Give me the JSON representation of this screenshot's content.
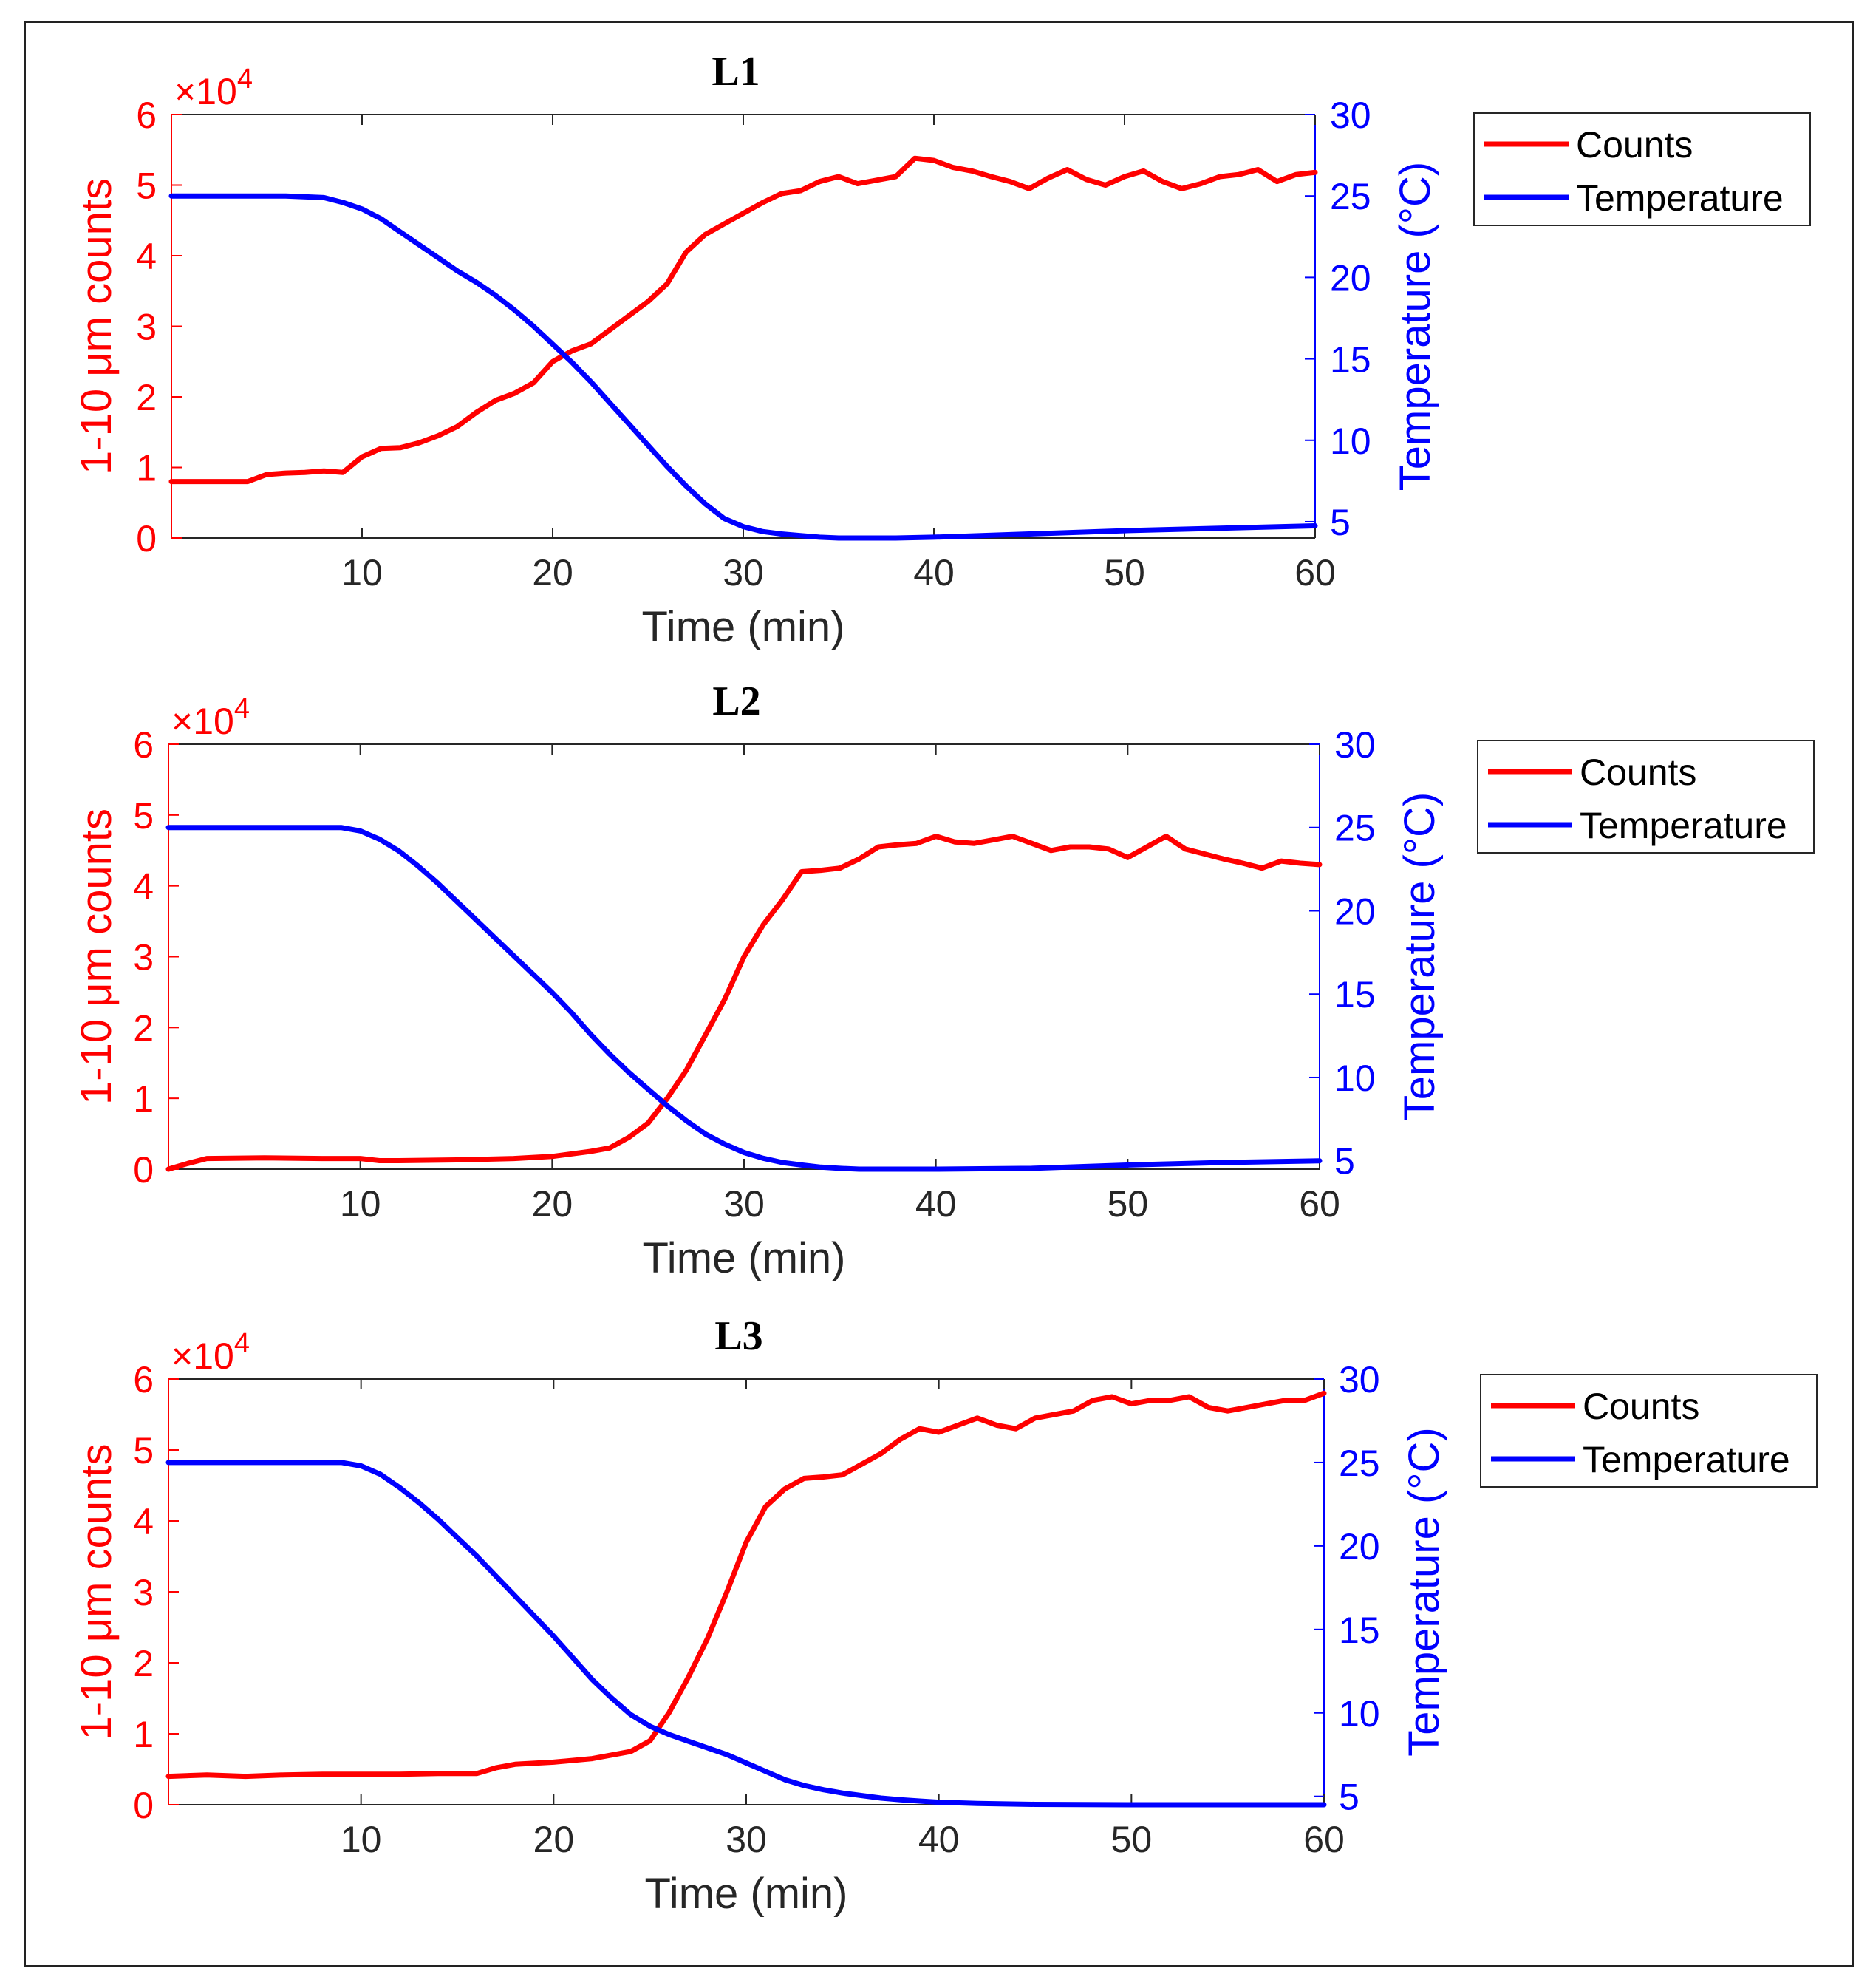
{
  "colors": {
    "counts": "#ff0000",
    "temperature": "#0000ff",
    "axis": "#262626",
    "frame": "#222222"
  },
  "chart_data": [
    {
      "type": "line",
      "title": "L1",
      "xlabel": "Time (min)",
      "ylabel_left": "1-10 μm counts",
      "ylabel_right": "Temperature (°C)",
      "left_exponent_base": "×10",
      "left_exponent_power": "4",
      "xlim": [
        0,
        60
      ],
      "ylim_left": [
        0,
        6
      ],
      "ylim_right": [
        4,
        30
      ],
      "xticks": [
        "10",
        "20",
        "30",
        "40",
        "50",
        "60"
      ],
      "yticks_left": [
        "0",
        "1",
        "2",
        "3",
        "4",
        "5",
        "6"
      ],
      "yticks_right": [
        "5",
        "10",
        "15",
        "20",
        "25",
        "30"
      ],
      "legend": [
        "Counts",
        "Temperature"
      ],
      "series": [
        {
          "name": "Counts",
          "axis": "left",
          "x": [
            0,
            4,
            5,
            6,
            7,
            8,
            9,
            10,
            11,
            12,
            13,
            14,
            15,
            16,
            17,
            18,
            19,
            20,
            21,
            22,
            23,
            24,
            25,
            26,
            27,
            28,
            29,
            30,
            31,
            32,
            33,
            34,
            35,
            36,
            37,
            38,
            39,
            40,
            41,
            42,
            43,
            44,
            45,
            46,
            47,
            48,
            49,
            50,
            51,
            52,
            53,
            54,
            55,
            56,
            57,
            58,
            59,
            60
          ],
          "values": [
            0.8,
            0.8,
            0.9,
            0.92,
            0.93,
            0.95,
            0.93,
            1.15,
            1.27,
            1.28,
            1.35,
            1.45,
            1.58,
            1.78,
            1.95,
            2.05,
            2.2,
            2.5,
            2.65,
            2.75,
            2.95,
            3.15,
            3.35,
            3.6,
            4.05,
            4.3,
            4.45,
            4.6,
            4.75,
            4.88,
            4.92,
            5.05,
            5.12,
            5.02,
            5.07,
            5.12,
            5.38,
            5.35,
            5.25,
            5.2,
            5.12,
            5.05,
            4.95,
            5.1,
            5.22,
            5.08,
            5.0,
            5.12,
            5.2,
            5.05,
            4.95,
            5.02,
            5.12,
            5.15,
            5.22,
            5.05,
            5.15,
            5.18
          ]
        },
        {
          "name": "Temperature",
          "axis": "right",
          "x": [
            0,
            3,
            6,
            8,
            9,
            10,
            11,
            12,
            13,
            14,
            15,
            16,
            17,
            18,
            19,
            20,
            21,
            22,
            23,
            24,
            25,
            26,
            27,
            28,
            29,
            30,
            31,
            32,
            33,
            34,
            35,
            36,
            37,
            38,
            40,
            45,
            50,
            55,
            60
          ],
          "values": [
            25,
            25,
            25,
            24.9,
            24.6,
            24.2,
            23.6,
            22.8,
            22.0,
            21.2,
            20.4,
            19.7,
            18.9,
            18.0,
            17.0,
            15.9,
            14.8,
            13.6,
            12.3,
            11.0,
            9.7,
            8.4,
            7.2,
            6.1,
            5.2,
            4.7,
            4.4,
            4.25,
            4.15,
            4.05,
            4.0,
            4.0,
            4.0,
            4.0,
            4.05,
            4.25,
            4.45,
            4.6,
            4.75
          ]
        }
      ]
    },
    {
      "type": "line",
      "title": "L2",
      "xlabel": "Time (min)",
      "ylabel_left": "1-10 μm counts",
      "ylabel_right": "Temperature (°C)",
      "left_exponent_base": "×10",
      "left_exponent_power": "4",
      "xlim": [
        0,
        60
      ],
      "ylim_left": [
        0,
        6
      ],
      "ylim_right": [
        4.5,
        30
      ],
      "xticks": [
        "10",
        "20",
        "30",
        "40",
        "50",
        "60"
      ],
      "yticks_left": [
        "0",
        "1",
        "2",
        "3",
        "4",
        "5",
        "6"
      ],
      "yticks_right": [
        "5",
        "10",
        "15",
        "20",
        "25",
        "30"
      ],
      "legend": [
        "Counts",
        "Temperature"
      ],
      "series": [
        {
          "name": "Counts",
          "axis": "left",
          "x": [
            0,
            1,
            2,
            5,
            8,
            10,
            11,
            12,
            15,
            18,
            20,
            22,
            23,
            24,
            25,
            26,
            27,
            28,
            29,
            30,
            31,
            32,
            33,
            34,
            35,
            36,
            37,
            38,
            39,
            40,
            41,
            42,
            43,
            44,
            45,
            46,
            47,
            48,
            49,
            50,
            51,
            52,
            53,
            54,
            55,
            56,
            57,
            58,
            59,
            60
          ],
          "values": [
            0.0,
            0.08,
            0.15,
            0.16,
            0.15,
            0.15,
            0.12,
            0.12,
            0.13,
            0.15,
            0.18,
            0.25,
            0.3,
            0.45,
            0.65,
            1.0,
            1.4,
            1.9,
            2.4,
            3.0,
            3.45,
            3.8,
            4.2,
            4.22,
            4.25,
            4.38,
            4.55,
            4.58,
            4.6,
            4.7,
            4.62,
            4.6,
            4.65,
            4.7,
            4.6,
            4.5,
            4.55,
            4.55,
            4.52,
            4.4,
            4.55,
            4.7,
            4.52,
            4.45,
            4.38,
            4.32,
            4.25,
            4.35,
            4.32,
            4.3
          ]
        },
        {
          "name": "Temperature",
          "axis": "right",
          "x": [
            0,
            5,
            9,
            10,
            11,
            12,
            13,
            14,
            15,
            16,
            17,
            18,
            19,
            20,
            21,
            22,
            23,
            24,
            25,
            26,
            27,
            28,
            29,
            30,
            31,
            32,
            33,
            34,
            35,
            36,
            37,
            38,
            39,
            40,
            45,
            50,
            55,
            60
          ],
          "values": [
            25,
            25,
            25,
            24.8,
            24.3,
            23.6,
            22.7,
            21.7,
            20.6,
            19.5,
            18.4,
            17.3,
            16.2,
            15.1,
            13.9,
            12.6,
            11.4,
            10.3,
            9.3,
            8.3,
            7.4,
            6.6,
            6.0,
            5.5,
            5.15,
            4.9,
            4.75,
            4.62,
            4.55,
            4.5,
            4.5,
            4.5,
            4.5,
            4.5,
            4.55,
            4.75,
            4.9,
            5.0
          ]
        }
      ]
    },
    {
      "type": "line",
      "title": "L3",
      "xlabel": "Time (min)",
      "ylabel_left": "1-10 μm counts",
      "ylabel_right": "Temperature (°C)",
      "left_exponent_base": "×10",
      "left_exponent_power": "4",
      "xlim": [
        0,
        60
      ],
      "ylim_left": [
        0,
        6
      ],
      "ylim_right": [
        4.5,
        30
      ],
      "xticks": [
        "10",
        "20",
        "30",
        "40",
        "50",
        "60"
      ],
      "yticks_left": [
        "0",
        "1",
        "2",
        "3",
        "4",
        "5",
        "6"
      ],
      "yticks_right": [
        "5",
        "10",
        "15",
        "20",
        "25",
        "30"
      ],
      "legend": [
        "Counts",
        "Temperature"
      ],
      "series": [
        {
          "name": "Counts",
          "axis": "left",
          "x": [
            0,
            2,
            4,
            6,
            8,
            10,
            12,
            14,
            16,
            17,
            18,
            20,
            22,
            23,
            24,
            25,
            26,
            27,
            28,
            29,
            30,
            31,
            32,
            33,
            34,
            35,
            36,
            37,
            38,
            39,
            40,
            41,
            42,
            43,
            44,
            45,
            46,
            47,
            48,
            49,
            50,
            51,
            52,
            53,
            54,
            55,
            56,
            57,
            58,
            59,
            60
          ],
          "values": [
            0.4,
            0.42,
            0.4,
            0.42,
            0.43,
            0.43,
            0.43,
            0.44,
            0.44,
            0.52,
            0.57,
            0.6,
            0.65,
            0.7,
            0.75,
            0.9,
            1.3,
            1.8,
            2.35,
            3.0,
            3.7,
            4.2,
            4.45,
            4.6,
            4.62,
            4.65,
            4.8,
            4.95,
            5.15,
            5.3,
            5.25,
            5.35,
            5.45,
            5.35,
            5.3,
            5.45,
            5.5,
            5.55,
            5.7,
            5.75,
            5.65,
            5.7,
            5.7,
            5.75,
            5.6,
            5.55,
            5.6,
            5.65,
            5.7,
            5.7,
            5.8
          ]
        },
        {
          "name": "Temperature",
          "axis": "right",
          "x": [
            0,
            5,
            9,
            10,
            11,
            12,
            13,
            14,
            15,
            16,
            17,
            18,
            19,
            20,
            21,
            22,
            23,
            24,
            25,
            26,
            27,
            28,
            29,
            30,
            31,
            32,
            33,
            34,
            35,
            36,
            37,
            38,
            39,
            40,
            42,
            45,
            50,
            55,
            60
          ],
          "values": [
            25,
            25,
            25,
            24.8,
            24.3,
            23.5,
            22.6,
            21.6,
            20.5,
            19.4,
            18.2,
            17.0,
            15.8,
            14.6,
            13.3,
            12.0,
            10.9,
            9.9,
            9.2,
            8.7,
            8.3,
            7.9,
            7.5,
            7.0,
            6.5,
            6.0,
            5.65,
            5.4,
            5.2,
            5.05,
            4.9,
            4.8,
            4.72,
            4.65,
            4.58,
            4.52,
            4.5,
            4.5,
            4.5
          ]
        }
      ]
    }
  ]
}
